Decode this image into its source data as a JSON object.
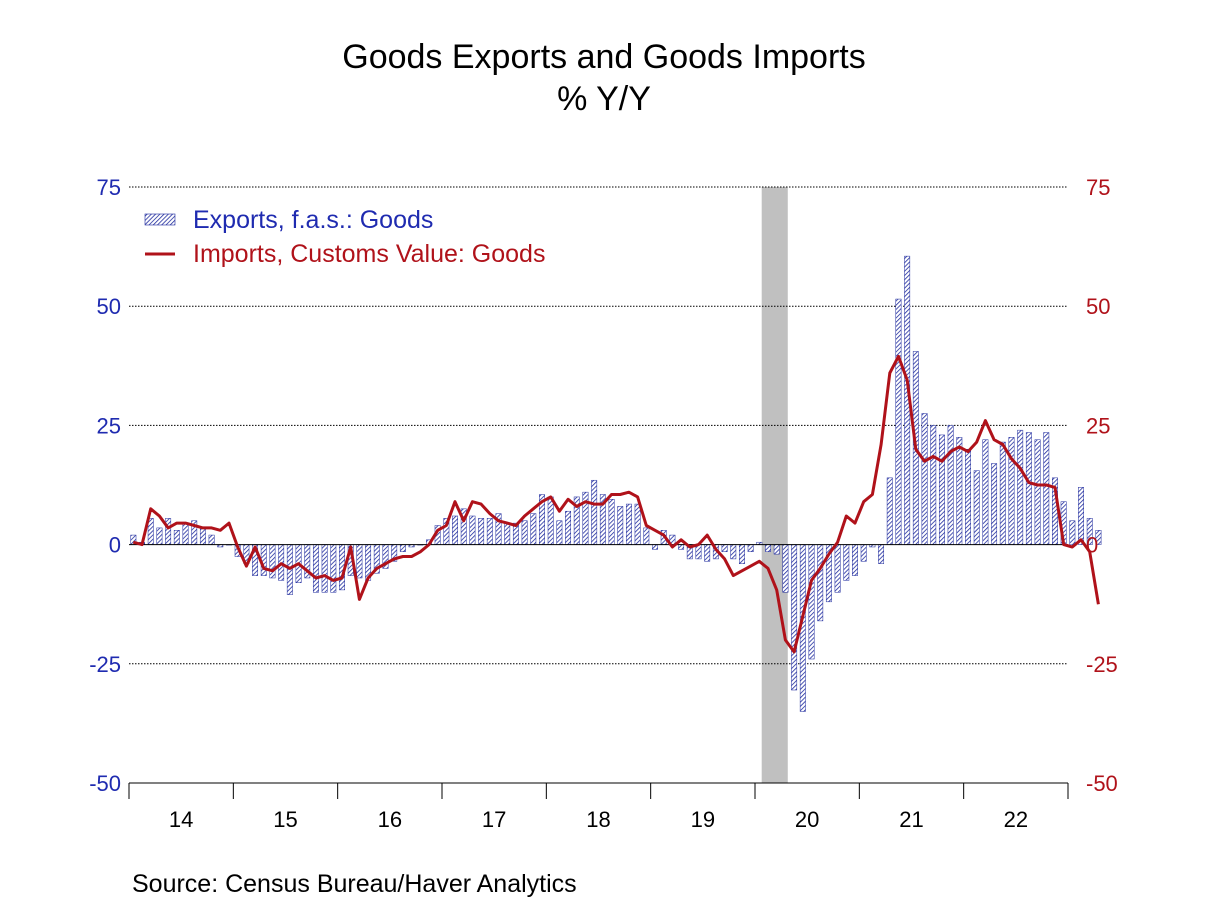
{
  "title": "Goods Exports and Goods Imports",
  "subtitle": "% Y/Y",
  "source": "Source:  Census Bureau/Haver Analytics",
  "colors": {
    "exports": "#1f2b9e",
    "imports": "#b0121a",
    "recession": "#c0c0c0",
    "axis_left": "#1f2bb0",
    "axis_right": "#b0121a"
  },
  "chart_data": {
    "type": "bar",
    "legend_position": "top-left",
    "grid": true,
    "ylim": [
      -50,
      75
    ],
    "yticks": [
      75,
      50,
      25,
      0,
      -25,
      -50
    ],
    "ytick_labels": [
      "75",
      "50",
      "25",
      "0",
      "-25",
      "-50"
    ],
    "x_labels": [
      "14",
      "15",
      "16",
      "17",
      "18",
      "19",
      "20",
      "21",
      "22"
    ],
    "recession_band": {
      "start": "2020-02",
      "end": "2020-04"
    },
    "start_month": "2014-01",
    "series": [
      {
        "name": "Exports, f.a.s.: Goods",
        "kind": "bar",
        "values": [
          2,
          0.5,
          5.5,
          3.5,
          5.5,
          3,
          4.5,
          5,
          3.5,
          2,
          -0.5,
          0,
          -2.5,
          -4,
          -6.5,
          -6.5,
          -7,
          -7.5,
          -10.5,
          -8,
          -7,
          -10,
          -10,
          -10,
          -9.5,
          -6.5,
          -7,
          -7.5,
          -6,
          -5,
          -3.5,
          -1.5,
          -0.5,
          0,
          1,
          4,
          5.5,
          6,
          7.5,
          6,
          5.5,
          5.5,
          6.5,
          4.5,
          4.5,
          5,
          6.5,
          10.5,
          10,
          5,
          7,
          10,
          11,
          13.5,
          10.5,
          9.5,
          8,
          8.5,
          8.5,
          3.5,
          -1,
          3,
          2,
          -1,
          -3,
          -3,
          -3.5,
          -3,
          -1.5,
          -3,
          -4,
          -1.5,
          0.5,
          -1.5,
          -2,
          -10,
          -30.5,
          -35,
          -24,
          -16,
          -12,
          -10,
          -7.5,
          -6.5,
          -3.5,
          -0.5,
          -4,
          14,
          51.5,
          60.5,
          40.5,
          27.5,
          25,
          23,
          25,
          22.5,
          20,
          15.5,
          22,
          17,
          21.5,
          22.5,
          24,
          23.5,
          22,
          23.5,
          14,
          9,
          5,
          12,
          5.5,
          3
        ],
        "color": "#1f2b9e"
      },
      {
        "name": "Imports, Customs Value: Goods",
        "kind": "line",
        "values": [
          0.5,
          0,
          7.5,
          6,
          3.5,
          4.5,
          4.5,
          4,
          3.5,
          3.5,
          3,
          4.5,
          -0.5,
          -4.5,
          -0.5,
          -5,
          -5.5,
          -4,
          -5,
          -4,
          -5.5,
          -7,
          -6.5,
          -7.5,
          -7,
          -0.5,
          -11.5,
          -7,
          -5,
          -4,
          -3,
          -2.5,
          -2.5,
          -1.5,
          0,
          3,
          4,
          9,
          5,
          9,
          8.5,
          6.5,
          5,
          4.5,
          4,
          6,
          7.5,
          9,
          10,
          7,
          9.5,
          8,
          9,
          8.5,
          8.5,
          10.5,
          10.5,
          11,
          10,
          4,
          3,
          2,
          -0.5,
          1,
          -0.5,
          0,
          2,
          -1,
          -3,
          -6.5,
          -5.5,
          -4.5,
          -3.5,
          -5,
          -9.5,
          -20,
          -22.5,
          -15,
          -7.5,
          -5,
          -2,
          0.5,
          6,
          4.5,
          9,
          10.5,
          21,
          36,
          39.5,
          34.5,
          20,
          17.5,
          18.5,
          17.5,
          19.5,
          20.5,
          19.5,
          21.5,
          26,
          22,
          21,
          18,
          16,
          13,
          12.5,
          12.5,
          12,
          0,
          -0.5,
          1,
          -1.5,
          -12.5
        ],
        "color": "#b0121a"
      }
    ]
  }
}
